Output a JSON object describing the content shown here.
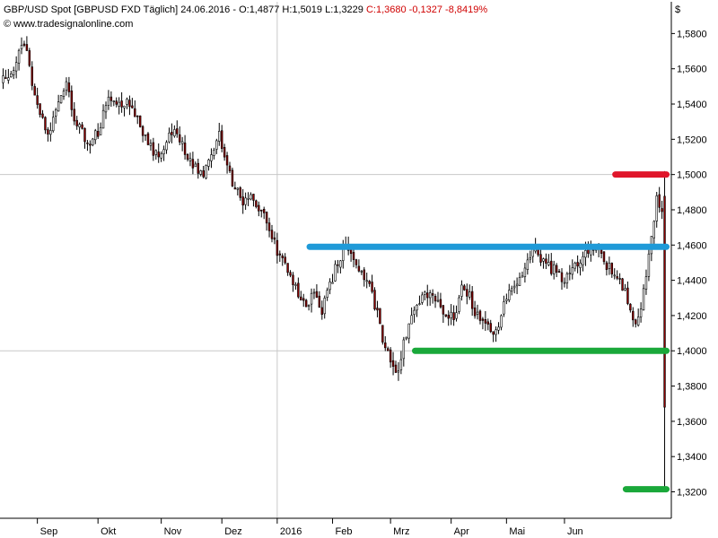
{
  "header": {
    "instrument": "GBP/USD Spot [GBPUSD FXD  Täglich] 24.06.2016 - ",
    "ohlc_prefix": "O:1,4877 H:1,5019 L:1,3229 ",
    "close_part": "C:1,3680 -0,1327 -8,8419%",
    "watermark": "© www.tradesignalonline.com",
    "currency": "$"
  },
  "colors": {
    "up_candle": "#ffffff",
    "down_candle": "#8b0000",
    "wick": "#000000",
    "close_text": "#d00000",
    "resistance_line": "#e0162b",
    "range_top_line": "#1f9ad8",
    "support_line": "#1aa83a",
    "grid": "#c8c8c8"
  },
  "chart_data": {
    "type": "candlestick",
    "title": "GBP/USD Spot [GBPUSD FXD  Täglich]",
    "ylim": [
      1.305,
      1.598
    ],
    "yticks": [
      1.32,
      1.34,
      1.36,
      1.38,
      1.4,
      1.42,
      1.44,
      1.46,
      1.48,
      1.5,
      1.52,
      1.54,
      1.56,
      1.58
    ],
    "ytick_labels": [
      "1,3200",
      "1,3400",
      "1,3600",
      "1,3800",
      "1,4000",
      "1,4200",
      "1,4400",
      "1,4600",
      "1,4800",
      "1,5000",
      "1,5200",
      "1,5400",
      "1,5600",
      "1,5800"
    ],
    "xticks": [
      "Sep",
      "Okt",
      "Nov",
      "Dez",
      "2016",
      "Feb",
      "Mrz",
      "Apr",
      "Mai",
      "Jun"
    ],
    "grid_y": [
      1.4,
      1.5
    ],
    "grid_x_label": "2016",
    "trend_points": [
      [
        0,
        1.552
      ],
      [
        5,
        1.562
      ],
      [
        8,
        1.575
      ],
      [
        10,
        1.57
      ],
      [
        12,
        1.548
      ],
      [
        15,
        1.533
      ],
      [
        18,
        1.522
      ],
      [
        22,
        1.54
      ],
      [
        25,
        1.552
      ],
      [
        27,
        1.538
      ],
      [
        30,
        1.525
      ],
      [
        34,
        1.517
      ],
      [
        37,
        1.525
      ],
      [
        40,
        1.54
      ],
      [
        43,
        1.545
      ],
      [
        46,
        1.54
      ],
      [
        50,
        1.54
      ],
      [
        53,
        1.525
      ],
      [
        56,
        1.518
      ],
      [
        60,
        1.508
      ],
      [
        63,
        1.518
      ],
      [
        66,
        1.525
      ],
      [
        70,
        1.512
      ],
      [
        73,
        1.505
      ],
      [
        77,
        1.5
      ],
      [
        80,
        1.512
      ],
      [
        83,
        1.522
      ],
      [
        85,
        1.508
      ],
      [
        88,
        1.495
      ],
      [
        92,
        1.486
      ],
      [
        95,
        1.488
      ],
      [
        98,
        1.48
      ],
      [
        100,
        1.475
      ],
      [
        103,
        1.465
      ],
      [
        106,
        1.452
      ],
      [
        110,
        1.445
      ],
      [
        113,
        1.43
      ],
      [
        116,
        1.426
      ],
      [
        119,
        1.432
      ],
      [
        122,
        1.423
      ],
      [
        125,
        1.438
      ],
      [
        128,
        1.45
      ],
      [
        131,
        1.462
      ],
      [
        134,
        1.452
      ],
      [
        137,
        1.445
      ],
      [
        140,
        1.44
      ],
      [
        143,
        1.42
      ],
      [
        146,
        1.4
      ],
      [
        149,
        1.39
      ],
      [
        151,
        1.392
      ],
      [
        154,
        1.41
      ],
      [
        157,
        1.422
      ],
      [
        160,
        1.43
      ],
      [
        163,
        1.435
      ],
      [
        166,
        1.428
      ],
      [
        169,
        1.42
      ],
      [
        172,
        1.42
      ],
      [
        175,
        1.435
      ],
      [
        178,
        1.43
      ],
      [
        181,
        1.42
      ],
      [
        184,
        1.413
      ],
      [
        187,
        1.41
      ],
      [
        190,
        1.42
      ],
      [
        193,
        1.435
      ],
      [
        196,
        1.44
      ],
      [
        199,
        1.448
      ],
      [
        202,
        1.46
      ],
      [
        205,
        1.452
      ],
      [
        208,
        1.447
      ],
      [
        211,
        1.445
      ],
      [
        214,
        1.44
      ],
      [
        217,
        1.445
      ],
      [
        220,
        1.452
      ],
      [
        223,
        1.457
      ],
      [
        226,
        1.46
      ],
      [
        229,
        1.45
      ],
      [
        232,
        1.445
      ],
      [
        235,
        1.44
      ],
      [
        238,
        1.43
      ],
      [
        241,
        1.415
      ],
      [
        243,
        1.425
      ],
      [
        246,
        1.452
      ],
      [
        248,
        1.472
      ],
      [
        249,
        1.488
      ],
      [
        250,
        1.478
      ]
    ],
    "last_candle": {
      "open": 1.4877,
      "high": 1.5019,
      "low": 1.3229,
      "close": 1.368
    },
    "n_bars": 252,
    "xtick_bar_index": [
      13,
      36,
      60,
      83,
      104,
      125,
      147,
      170,
      191,
      213
    ],
    "seed": 20160624,
    "levels": [
      {
        "name": "resistance-line",
        "value": 1.5,
        "from_bar": 233,
        "to_bar": 251,
        "color": "#e0162b"
      },
      {
        "name": "range-top-line",
        "value": 1.459,
        "from_bar": 117,
        "to_bar": 251,
        "color": "#1f9ad8"
      },
      {
        "name": "support-line",
        "value": 1.4,
        "from_bar": 157,
        "to_bar": 251,
        "color": "#1aa83a"
      },
      {
        "name": "low-line",
        "value": 1.3215,
        "from_bar": 237,
        "to_bar": 251,
        "color": "#1aa83a"
      }
    ]
  }
}
